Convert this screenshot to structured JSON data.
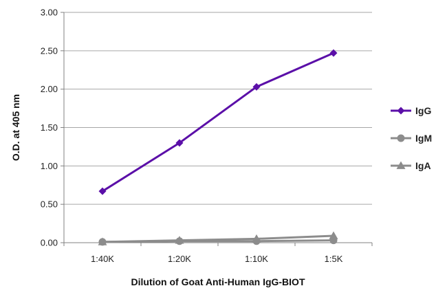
{
  "chart_data": {
    "type": "line",
    "title": "",
    "xlabel": "Dilution of Goat Anti-Human IgG-BIOT",
    "ylabel": "O.D. at 405 nm",
    "categories": [
      "1:40K",
      "1:20K",
      "1:10K",
      "1:5K"
    ],
    "ylim": [
      0,
      3
    ],
    "yticks": [
      "0.00",
      "0.50",
      "1.00",
      "1.50",
      "2.00",
      "2.50",
      "3.00"
    ],
    "grid": true,
    "legend_position": "right",
    "series": [
      {
        "name": "IgG",
        "values": [
          0.67,
          1.3,
          2.03,
          2.47
        ],
        "color": "#5b0fa8",
        "marker": "diamond"
      },
      {
        "name": "IgM",
        "values": [
          0.01,
          0.02,
          0.02,
          0.03
        ],
        "color": "#8c8c8c",
        "marker": "circle"
      },
      {
        "name": "IgA",
        "values": [
          0.01,
          0.03,
          0.05,
          0.09
        ],
        "color": "#8c8c8c",
        "marker": "triangle"
      }
    ]
  }
}
